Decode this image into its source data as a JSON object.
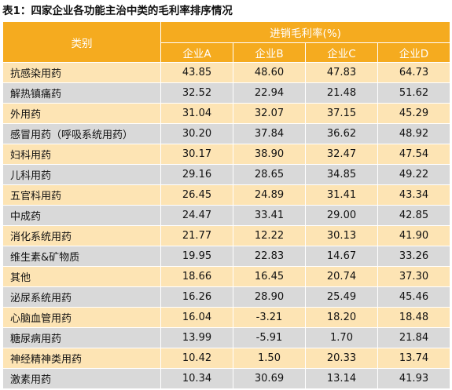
{
  "title": "表1：四家企业各功能主治中类的毛利率排序情况",
  "header": {
    "category": "类别",
    "group": "进销毛利率(%)",
    "companies": [
      "企业A",
      "企业B",
      "企业C",
      "企业D"
    ]
  },
  "rows": [
    {
      "name": "抗感染用药",
      "values": [
        "43.85",
        "48.60",
        "47.83",
        "64.73"
      ]
    },
    {
      "name": "解热镇痛药",
      "values": [
        "32.52",
        "22.94",
        "21.48",
        "51.62"
      ]
    },
    {
      "name": "外用药",
      "values": [
        "31.04",
        "32.07",
        "37.15",
        "45.29"
      ]
    },
    {
      "name": "感冒用药（呼吸系统用药）",
      "values": [
        "30.20",
        "37.84",
        "36.62",
        "48.92"
      ]
    },
    {
      "name": "妇科用药",
      "values": [
        "30.17",
        "38.90",
        "32.47",
        "47.54"
      ]
    },
    {
      "name": "儿科用药",
      "values": [
        "29.16",
        "28.65",
        "34.85",
        "49.22"
      ]
    },
    {
      "name": "五官科用药",
      "values": [
        "26.45",
        "24.89",
        "31.41",
        "43.34"
      ]
    },
    {
      "name": "中成药",
      "values": [
        "24.47",
        "33.41",
        "29.00",
        "42.85"
      ]
    },
    {
      "name": "消化系统用药",
      "values": [
        "21.77",
        "12.22",
        "30.13",
        "41.90"
      ]
    },
    {
      "name": "维生素&矿物质",
      "values": [
        "19.95",
        "22.83",
        "14.67",
        "33.26"
      ]
    },
    {
      "name": "其他",
      "values": [
        "18.66",
        "16.45",
        "20.74",
        "37.30"
      ]
    },
    {
      "name": "泌尿系统用药",
      "values": [
        "16.26",
        "28.90",
        "25.49",
        "45.46"
      ]
    },
    {
      "name": "心脑血管用药",
      "values": [
        "16.04",
        "-3.21",
        "18.20",
        "18.48"
      ]
    },
    {
      "name": "糖尿病用药",
      "values": [
        "13.99",
        "-5.91",
        "1.70",
        "21.84"
      ]
    },
    {
      "name": "神经精神类用药",
      "values": [
        "10.42",
        "1.50",
        "20.33",
        "13.74"
      ]
    },
    {
      "name": "激素用药",
      "values": [
        "10.34",
        "30.69",
        "13.14",
        "41.93"
      ]
    }
  ],
  "colors": {
    "header": "#f5ab1f",
    "row_odd": "#fde4b4",
    "row_even": "#d9d9d9"
  }
}
